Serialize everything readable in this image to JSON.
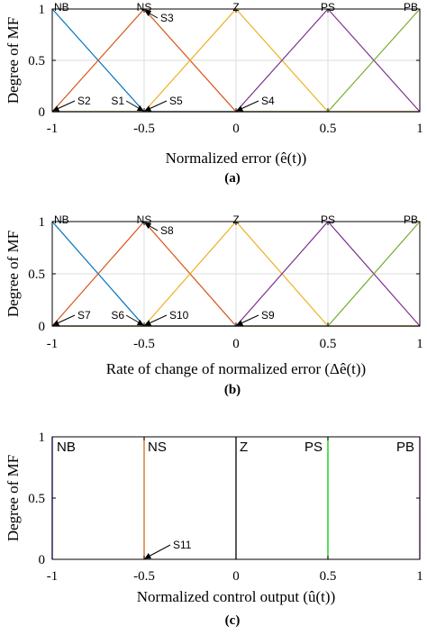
{
  "chart_data": [
    {
      "type": "line",
      "panel_label": "(a)",
      "xlabel": "Normalized error (ê(t))",
      "ylabel": "Degree of MF",
      "xlim": [
        -1,
        1
      ],
      "ylim": [
        0,
        1
      ],
      "xticks": [
        "-1",
        "-0.5",
        "0",
        "0.5",
        "1"
      ],
      "yticks": [
        "0",
        "0.5",
        "1"
      ],
      "grid": true,
      "series": [
        {
          "name": "NB",
          "color": "#0072BD",
          "x": [
            -1,
            -0.5,
            1
          ],
          "y": [
            1,
            0,
            0
          ]
        },
        {
          "name": "NS",
          "color": "#D95319",
          "x": [
            -1,
            -0.5,
            0,
            1
          ],
          "y": [
            0,
            1,
            0,
            0
          ]
        },
        {
          "name": "Z",
          "color": "#EDB120",
          "x": [
            -1,
            -0.5,
            0,
            0.5,
            1
          ],
          "y": [
            0,
            0,
            1,
            0,
            0
          ]
        },
        {
          "name": "PS",
          "color": "#7E2F8E",
          "x": [
            -1,
            0,
            0.5,
            1
          ],
          "y": [
            0,
            0,
            1,
            0
          ]
        },
        {
          "name": "PB",
          "color": "#77AC30",
          "x": [
            -1,
            0.5,
            1
          ],
          "y": [
            0,
            0,
            1
          ]
        }
      ],
      "annotations": [
        {
          "text": "S3",
          "x": -0.5,
          "y": 1,
          "side": "right"
        },
        {
          "text": "S2",
          "x": -1,
          "y": 0,
          "side": "right"
        },
        {
          "text": "S1",
          "x": -0.5,
          "y": 0,
          "side": "left"
        },
        {
          "text": "S5",
          "x": -0.5,
          "y": 0,
          "side": "right"
        },
        {
          "text": "S4",
          "x": 0,
          "y": 0,
          "side": "right"
        }
      ]
    },
    {
      "type": "line",
      "panel_label": "(b)",
      "xlabel": "Rate of change of normalized error (Δê(t))",
      "ylabel": "Degree of MF",
      "xlim": [
        -1,
        1
      ],
      "ylim": [
        0,
        1
      ],
      "xticks": [
        "-1",
        "-0.5",
        "0",
        "0.5",
        "1"
      ],
      "yticks": [
        "0",
        "0.5",
        "1"
      ],
      "grid": true,
      "series": [
        {
          "name": "NB",
          "color": "#0072BD",
          "x": [
            -1,
            -0.5,
            1
          ],
          "y": [
            1,
            0,
            0
          ]
        },
        {
          "name": "NS",
          "color": "#D95319",
          "x": [
            -1,
            -0.5,
            0,
            1
          ],
          "y": [
            0,
            1,
            0,
            0
          ]
        },
        {
          "name": "Z",
          "color": "#EDB120",
          "x": [
            -1,
            -0.5,
            0,
            0.5,
            1
          ],
          "y": [
            0,
            0,
            1,
            0,
            0
          ]
        },
        {
          "name": "PS",
          "color": "#7E2F8E",
          "x": [
            -1,
            0,
            0.5,
            1
          ],
          "y": [
            0,
            0,
            1,
            0
          ]
        },
        {
          "name": "PB",
          "color": "#77AC30",
          "x": [
            -1,
            0.5,
            1
          ],
          "y": [
            0,
            0,
            1
          ]
        }
      ],
      "annotations": [
        {
          "text": "S8",
          "x": -0.5,
          "y": 1,
          "side": "right"
        },
        {
          "text": "S7",
          "x": -1,
          "y": 0,
          "side": "right"
        },
        {
          "text": "S6",
          "x": -0.5,
          "y": 0,
          "side": "left"
        },
        {
          "text": "S10",
          "x": -0.5,
          "y": 0,
          "side": "right"
        },
        {
          "text": "S9",
          "x": 0,
          "y": 0,
          "side": "right"
        }
      ]
    },
    {
      "type": "line",
      "panel_label": "(c)",
      "xlabel": "Normalized control output (û(t))",
      "ylabel": "Degree of MF",
      "xlim": [
        -1,
        1
      ],
      "ylim": [
        0,
        1
      ],
      "xticks": [
        "-1",
        "-0.5",
        "0",
        "0.5",
        "1"
      ],
      "yticks": [
        "0",
        "0.5",
        "1"
      ],
      "grid": false,
      "series": [
        {
          "name": "NB",
          "color": "#0000FF",
          "x": [
            -1,
            -1
          ],
          "y": [
            0,
            1
          ]
        },
        {
          "name": "NS",
          "color": "#D2691E",
          "x": [
            -0.5,
            -0.5
          ],
          "y": [
            0,
            1
          ]
        },
        {
          "name": "Z",
          "color": "#000000",
          "x": [
            0,
            0
          ],
          "y": [
            0,
            1
          ]
        },
        {
          "name": "PS",
          "color": "#00CC00",
          "x": [
            0.5,
            0.5
          ],
          "y": [
            0,
            1
          ]
        },
        {
          "name": "PB",
          "color": "#CC00CC",
          "x": [
            1,
            1
          ],
          "y": [
            0,
            1
          ]
        }
      ],
      "annotations": [
        {
          "text": "S11",
          "x": -0.5,
          "y": 0,
          "side": "right"
        }
      ]
    }
  ]
}
